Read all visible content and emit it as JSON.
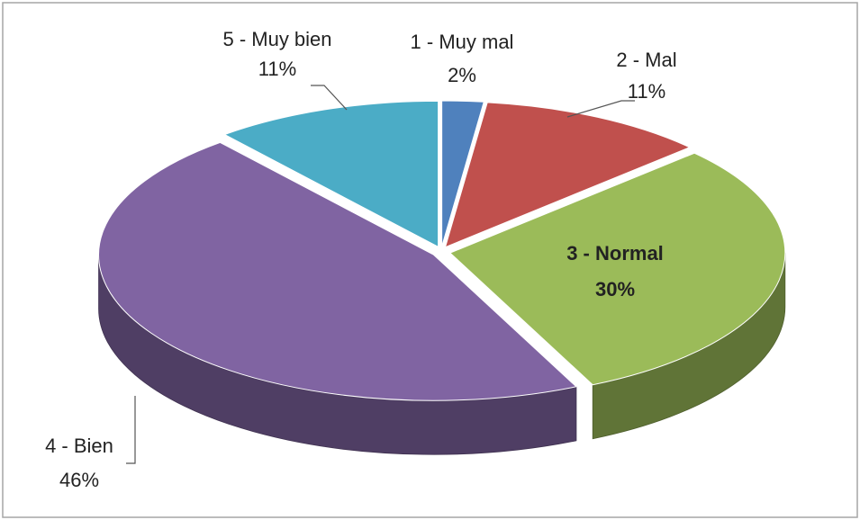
{
  "chart_data": {
    "type": "pie3d",
    "categories": [
      "1 - Muy mal",
      "2 - Mal",
      "3 - Normal",
      "4 - Bien",
      "5 - Muy bien"
    ],
    "values": [
      2,
      11,
      30,
      46,
      11
    ],
    "value_labels": [
      "2%",
      "11%",
      "30%",
      "46%",
      "11%"
    ],
    "colors": [
      "#4f81bd",
      "#c0504d",
      "#9bbb59",
      "#8064a2",
      "#4bacc6"
    ]
  }
}
